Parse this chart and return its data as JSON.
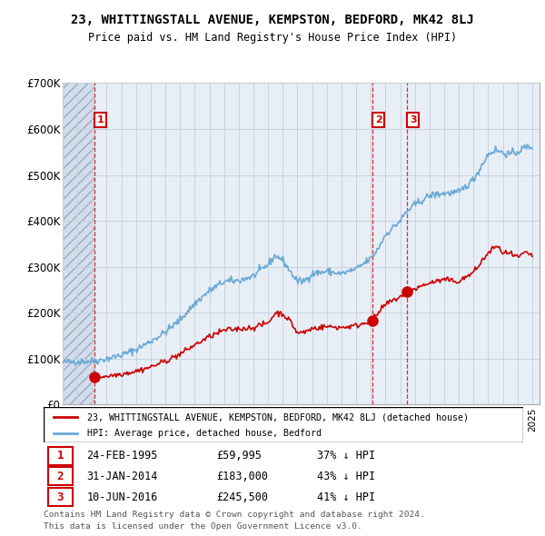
{
  "title": "23, WHITTINGSTALL AVENUE, KEMPSTON, BEDFORD, MK42 8LJ",
  "subtitle": "Price paid vs. HM Land Registry's House Price Index (HPI)",
  "ylim": [
    0,
    700000
  ],
  "yticks": [
    0,
    100000,
    200000,
    300000,
    400000,
    500000,
    600000,
    700000
  ],
  "ytick_labels": [
    "£0",
    "£100K",
    "£200K",
    "£300K",
    "£400K",
    "£500K",
    "£600K",
    "£700K"
  ],
  "xlim_start": 1993.0,
  "xlim_end": 2025.5,
  "sale_dates": [
    1995.15,
    2014.08,
    2016.44
  ],
  "sale_prices": [
    59995,
    183000,
    245500
  ],
  "sale_labels": [
    "1",
    "2",
    "3"
  ],
  "sale_info": [
    {
      "label": "1",
      "date": "24-FEB-1995",
      "price": "£59,995",
      "hpi": "37% ↓ HPI"
    },
    {
      "label": "2",
      "date": "31-JAN-2014",
      "price": "£183,000",
      "hpi": "43% ↓ HPI"
    },
    {
      "label": "3",
      "date": "10-JUN-2016",
      "price": "£245,500",
      "hpi": "41% ↓ HPI"
    }
  ],
  "legend_line1": "23, WHITTINGSTALL AVENUE, KEMPSTON, BEDFORD, MK42 8LJ (detached house)",
  "legend_line2": "HPI: Average price, detached house, Bedford",
  "footer1": "Contains HM Land Registry data © Crown copyright and database right 2024.",
  "footer2": "This data is licensed under the Open Government Licence v3.0.",
  "sale_color": "#cc0000",
  "hpi_line_color": "#6aaad4",
  "hatch_fill_color": "#dce6f0",
  "chart_bg_color": "#e8eef6",
  "grid_color": "#c8d4e0"
}
